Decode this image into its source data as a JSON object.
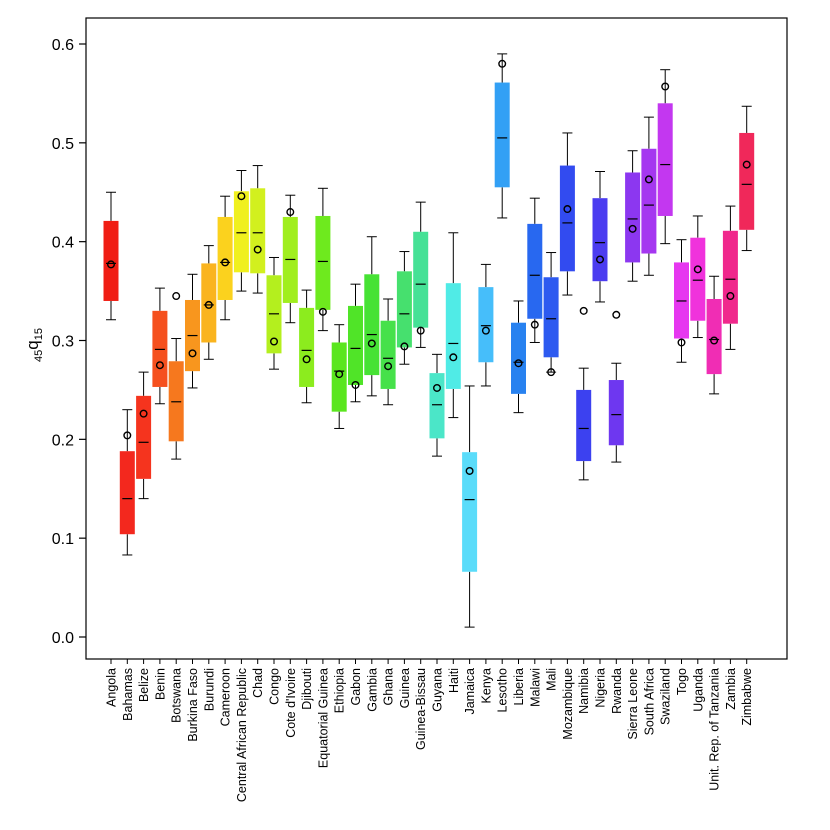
{
  "chart_data": {
    "type": "box",
    "ylabel": {
      "subscript_left": "45",
      "main": "q",
      "subscript_right": "15"
    },
    "ylim": [
      -0.02,
      0.62
    ],
    "yticks": [
      "0.0",
      "0.1",
      "0.2",
      "0.3",
      "0.4",
      "0.5",
      "0.6"
    ],
    "ytick_values": [
      0.0,
      0.1,
      0.2,
      0.3,
      0.4,
      0.5,
      0.6
    ],
    "categories": [
      {
        "name": "Angola",
        "color": "#f01e14",
        "wlo": 0.321,
        "q1": 0.34,
        "med": 0.378,
        "q3": 0.421,
        "whi": 0.45,
        "point": 0.377
      },
      {
        "name": "Bahamas",
        "color": "#f3281e",
        "wlo": 0.083,
        "q1": 0.104,
        "med": 0.14,
        "q3": 0.188,
        "whi": 0.23,
        "point": 0.204
      },
      {
        "name": "Belize",
        "color": "#f5341e",
        "wlo": 0.14,
        "q1": 0.16,
        "med": 0.197,
        "q3": 0.244,
        "whi": 0.268,
        "point": 0.226
      },
      {
        "name": "Benin",
        "color": "#f5501e",
        "wlo": 0.236,
        "q1": 0.253,
        "med": 0.291,
        "q3": 0.33,
        "whi": 0.353,
        "point": 0.275
      },
      {
        "name": "Botswana",
        "color": "#f6781e",
        "wlo": 0.18,
        "q1": 0.198,
        "med": 0.238,
        "q3": 0.279,
        "whi": 0.302,
        "point": 0.345
      },
      {
        "name": "Burkina Faso",
        "color": "#f8961e",
        "wlo": 0.252,
        "q1": 0.269,
        "med": 0.305,
        "q3": 0.341,
        "whi": 0.367,
        "point": 0.287
      },
      {
        "name": "Burundi",
        "color": "#fab41e",
        "wlo": 0.281,
        "q1": 0.298,
        "med": 0.336,
        "q3": 0.378,
        "whi": 0.396,
        "point": 0.336
      },
      {
        "name": "Cameroon",
        "color": "#fbd21e",
        "wlo": 0.321,
        "q1": 0.341,
        "med": 0.379,
        "q3": 0.425,
        "whi": 0.446,
        "point": 0.379
      },
      {
        "name": "Central African Republic",
        "color": "#f0f01e",
        "wlo": 0.35,
        "q1": 0.369,
        "med": 0.409,
        "q3": 0.451,
        "whi": 0.472,
        "point": 0.446
      },
      {
        "name": "Chad",
        "color": "#d2f01e",
        "wlo": 0.348,
        "q1": 0.368,
        "med": 0.409,
        "q3": 0.454,
        "whi": 0.477,
        "point": 0.392
      },
      {
        "name": "Congo",
        "color": "#b4ef1e",
        "wlo": 0.271,
        "q1": 0.287,
        "med": 0.327,
        "q3": 0.366,
        "whi": 0.384,
        "point": 0.299
      },
      {
        "name": "Cote d'Ivoire",
        "color": "#a0ee1e",
        "wlo": 0.318,
        "q1": 0.338,
        "med": 0.382,
        "q3": 0.425,
        "whi": 0.447,
        "point": 0.43
      },
      {
        "name": "Djibouti",
        "color": "#8cec1e",
        "wlo": 0.237,
        "q1": 0.253,
        "med": 0.29,
        "q3": 0.333,
        "whi": 0.351,
        "point": 0.281
      },
      {
        "name": "Equatorial Guinea",
        "color": "#6eea1e",
        "wlo": 0.31,
        "q1": 0.331,
        "med": 0.38,
        "q3": 0.426,
        "whi": 0.454,
        "point": 0.329
      },
      {
        "name": "Ethiopia",
        "color": "#5ae61e",
        "wlo": 0.211,
        "q1": 0.228,
        "med": 0.269,
        "q3": 0.298,
        "whi": 0.316,
        "point": 0.266
      },
      {
        "name": "Gabon",
        "color": "#50e428",
        "wlo": 0.238,
        "q1": 0.255,
        "med": 0.292,
        "q3": 0.335,
        "whi": 0.357,
        "point": 0.255
      },
      {
        "name": "Gambia",
        "color": "#46e234",
        "wlo": 0.244,
        "q1": 0.265,
        "med": 0.306,
        "q3": 0.367,
        "whi": 0.405,
        "point": 0.297
      },
      {
        "name": "Ghana",
        "color": "#46e14a",
        "wlo": 0.235,
        "q1": 0.251,
        "med": 0.282,
        "q3": 0.32,
        "whi": 0.342,
        "point": 0.274
      },
      {
        "name": "Guinea",
        "color": "#46e06e",
        "wlo": 0.276,
        "q1": 0.293,
        "med": 0.327,
        "q3": 0.37,
        "whi": 0.39,
        "point": 0.294
      },
      {
        "name": "Guinea-Bissau",
        "color": "#46e196",
        "wlo": 0.293,
        "q1": 0.313,
        "med": 0.357,
        "q3": 0.41,
        "whi": 0.44,
        "point": 0.31
      },
      {
        "name": "Guyana",
        "color": "#4be6c8",
        "wlo": 0.183,
        "q1": 0.201,
        "med": 0.235,
        "q3": 0.267,
        "whi": 0.286,
        "point": 0.252
      },
      {
        "name": "Haiti",
        "color": "#50ebe6",
        "wlo": 0.222,
        "q1": 0.251,
        "med": 0.297,
        "q3": 0.358,
        "whi": 0.409,
        "point": 0.283
      },
      {
        "name": "Jamaica",
        "color": "#5adcfa",
        "wlo": 0.01,
        "q1": 0.066,
        "med": 0.139,
        "q3": 0.187,
        "whi": 0.254,
        "point": 0.168
      },
      {
        "name": "Kenya",
        "color": "#46befa",
        "wlo": 0.254,
        "q1": 0.278,
        "med": 0.315,
        "q3": 0.354,
        "whi": 0.377,
        "point": 0.31
      },
      {
        "name": "Lesotho",
        "color": "#32a0f5",
        "wlo": 0.424,
        "q1": 0.455,
        "med": 0.505,
        "q3": 0.561,
        "whi": 0.59,
        "point": 0.58
      },
      {
        "name": "Liberia",
        "color": "#2882f0",
        "wlo": 0.227,
        "q1": 0.246,
        "med": 0.278,
        "q3": 0.318,
        "whi": 0.34,
        "point": 0.277
      },
      {
        "name": "Malawi",
        "color": "#2868f0",
        "wlo": 0.298,
        "q1": 0.322,
        "med": 0.366,
        "q3": 0.418,
        "whi": 0.444,
        "point": 0.316
      },
      {
        "name": "Mali",
        "color": "#2d5af0",
        "wlo": 0.268,
        "q1": 0.283,
        "med": 0.322,
        "q3": 0.364,
        "whi": 0.389,
        "point": 0.268
      },
      {
        "name": "Mozambique",
        "color": "#324bf0",
        "wlo": 0.346,
        "q1": 0.37,
        "med": 0.419,
        "q3": 0.477,
        "whi": 0.51,
        "point": 0.433
      },
      {
        "name": "Namibia",
        "color": "#3c41f0",
        "wlo": 0.159,
        "q1": 0.178,
        "med": 0.211,
        "q3": 0.25,
        "whi": 0.272,
        "point": 0.33
      },
      {
        "name": "Nigeria",
        "color": "#4b3cf0",
        "wlo": 0.339,
        "q1": 0.36,
        "med": 0.399,
        "q3": 0.444,
        "whi": 0.471,
        "point": 0.382
      },
      {
        "name": "Rwanda",
        "color": "#6e37f0",
        "wlo": 0.177,
        "q1": 0.194,
        "med": 0.225,
        "q3": 0.26,
        "whi": 0.277,
        "point": 0.326
      },
      {
        "name": "Sierra Leone",
        "color": "#8c37f0",
        "wlo": 0.36,
        "q1": 0.379,
        "med": 0.423,
        "q3": 0.47,
        "whi": 0.492,
        "point": 0.413
      },
      {
        "name": "South Africa",
        "color": "#a537f0",
        "wlo": 0.366,
        "q1": 0.388,
        "med": 0.437,
        "q3": 0.494,
        "whi": 0.526,
        "point": 0.463
      },
      {
        "name": "Swaziland",
        "color": "#c337f0",
        "wlo": 0.398,
        "q1": 0.426,
        "med": 0.478,
        "q3": 0.54,
        "whi": 0.574,
        "point": 0.557
      },
      {
        "name": "Togo",
        "color": "#e637f0",
        "wlo": 0.278,
        "q1": 0.302,
        "med": 0.34,
        "q3": 0.379,
        "whi": 0.402,
        "point": 0.298
      },
      {
        "name": "Uganda",
        "color": "#f032dc",
        "wlo": 0.303,
        "q1": 0.32,
        "med": 0.361,
        "q3": 0.404,
        "whi": 0.426,
        "point": 0.372
      },
      {
        "name": "Unit. Rep. of Tanzania",
        "color": "#f02db4",
        "wlo": 0.246,
        "q1": 0.266,
        "med": 0.301,
        "q3": 0.342,
        "whi": 0.365,
        "point": 0.3
      },
      {
        "name": "Zambia",
        "color": "#f0288c",
        "wlo": 0.291,
        "q1": 0.317,
        "med": 0.362,
        "q3": 0.411,
        "whi": 0.436,
        "point": 0.345
      },
      {
        "name": "Zimbabwe",
        "color": "#f0285a",
        "wlo": 0.391,
        "q1": 0.412,
        "med": 0.458,
        "q3": 0.51,
        "whi": 0.537,
        "point": 0.478
      }
    ]
  }
}
